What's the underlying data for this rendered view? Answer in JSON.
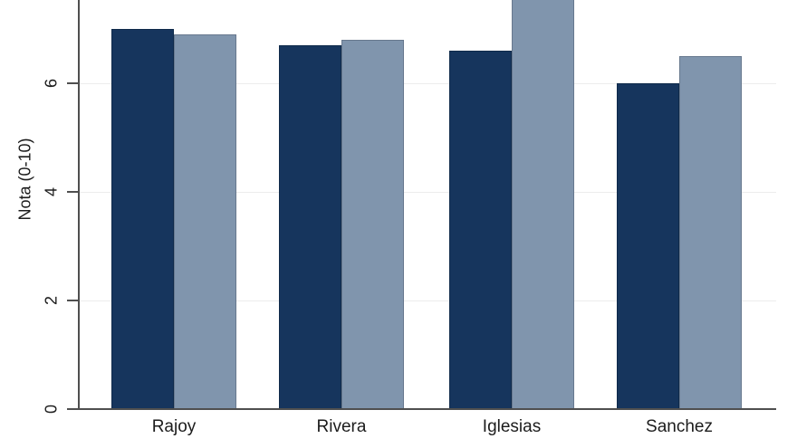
{
  "figure": {
    "kind": "statistical-bar-chart",
    "background_color": "#ffffff",
    "cropped_at_top": true
  },
  "axes": {
    "y_title": "Nota (0-10)",
    "y_tick_labels": [
      "0",
      "2",
      "4",
      "6"
    ],
    "x_tick_labels": [
      "Rajoy",
      "Rivera",
      "Iglesias",
      "Sanchez"
    ]
  },
  "colors": {
    "bar_dark": "#16355d",
    "bar_dark_border": "#0f2a4a",
    "bar_light": "#8095ad",
    "bar_light_border": "#67788e",
    "axis": "#4f4f4f",
    "gridline": "#ececec",
    "text": "#1c1c1c"
  },
  "chart_data": {
    "type": "bar",
    "title": "",
    "xlabel": "",
    "ylabel": "Nota (0-10)",
    "categories": [
      "Rajoy",
      "Rivera",
      "Iglesias",
      "Sanchez"
    ],
    "series": [
      {
        "id": "series-dark",
        "color": "#16355d",
        "values": [
          7.0,
          6.7,
          6.6,
          6.0
        ]
      },
      {
        "id": "series-light",
        "color": "#8095ad",
        "values": [
          6.9,
          6.8,
          8.0,
          6.5
        ]
      }
    ],
    "yticks": [
      0,
      2,
      4,
      6
    ],
    "ylim_visible": [
      0,
      7.5
    ],
    "grid": "horizontal light-gray lines at y tick values",
    "legend_position": "none visible (figure cropped at top)",
    "note": "Third category (Iglesias) light-series bar extends past the top edge of the image; at least 7.5 visible, value estimated ~8.0."
  }
}
